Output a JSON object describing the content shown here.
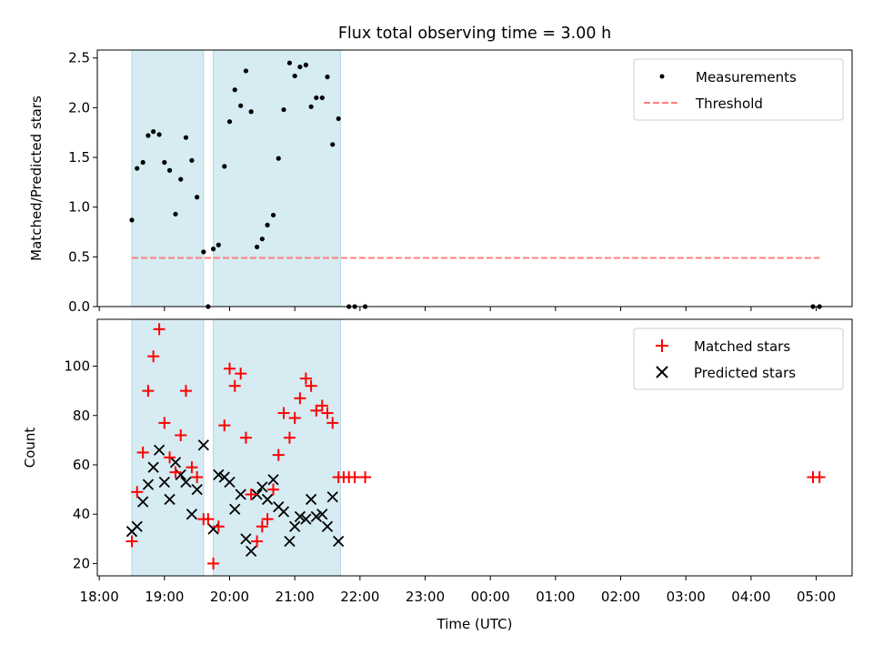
{
  "figure_title": "Flux total observing time = 3.00 h",
  "chart_data": [
    {
      "type": "scatter",
      "id": "ratio",
      "title": "Flux total observing time = 3.00 h",
      "xlabel": "",
      "ylabel": "Matched/Predicted stars",
      "xlim_hours": [
        17.97,
        29.55
      ],
      "ylim": [
        0,
        2.58
      ],
      "yticks": [
        {
          "v": 0,
          "label": "0.0"
        },
        {
          "v": 0.5,
          "label": "0.5"
        },
        {
          "v": 1.0,
          "label": "1.0"
        },
        {
          "v": 1.5,
          "label": "1.5"
        },
        {
          "v": 2.0,
          "label": "2.0"
        },
        {
          "v": 2.5,
          "label": "2.5"
        }
      ],
      "grid": false,
      "legend_position": "top-right",
      "legend": [
        {
          "label": "Measurements",
          "marker": "dot",
          "color": "#000000"
        },
        {
          "label": "Threshold",
          "marker": "dashed-line",
          "color": "#ff7f7f"
        }
      ],
      "threshold": {
        "name": "Threshold",
        "value": 0.49,
        "x_range_hours": [
          18.5,
          29.05
        ],
        "color": "#ff7f7f"
      },
      "shaded_periods_hours": [
        [
          18.5,
          19.6
        ],
        [
          19.75,
          21.7
        ]
      ],
      "shade_color": "#add8e6",
      "series": [
        {
          "name": "Measurements",
          "color": "#000000",
          "x_hours": [
            18.5,
            18.58,
            18.67,
            18.75,
            18.83,
            18.92,
            19.0,
            19.08,
            19.17,
            19.25,
            19.33,
            19.42,
            19.5,
            19.6,
            19.67,
            19.75,
            19.83,
            19.92,
            20.0,
            20.08,
            20.17,
            20.25,
            20.33,
            20.42,
            20.5,
            20.58,
            20.67,
            20.75,
            20.83,
            20.92,
            21.0,
            21.08,
            21.17,
            21.25,
            21.33,
            21.42,
            21.5,
            21.58,
            21.67,
            21.83,
            21.92,
            22.08,
            28.95,
            29.05
          ],
          "y": [
            0.87,
            1.39,
            1.45,
            1.72,
            1.76,
            1.73,
            1.45,
            1.37,
            0.93,
            1.28,
            1.7,
            1.47,
            1.1,
            0.55,
            0.0,
            0.58,
            0.62,
            1.41,
            1.86,
            2.18,
            2.02,
            2.37,
            1.96,
            0.6,
            0.68,
            0.82,
            0.92,
            1.49,
            1.98,
            2.45,
            2.32,
            2.41,
            2.43,
            2.01,
            2.1,
            2.1,
            2.31,
            1.63,
            1.89,
            0.0,
            0.0,
            0.0,
            0.0,
            0.0
          ]
        }
      ]
    },
    {
      "type": "scatter",
      "id": "count",
      "title": "",
      "xlabel": "Time (UTC)",
      "ylabel": "Count",
      "xlim_hours": [
        17.97,
        29.55
      ],
      "ylim": [
        15,
        119
      ],
      "yticks": [
        {
          "v": 20,
          "label": "20"
        },
        {
          "v": 40,
          "label": "40"
        },
        {
          "v": 60,
          "label": "60"
        },
        {
          "v": 80,
          "label": "80"
        },
        {
          "v": 100,
          "label": "100"
        }
      ],
      "xticks": [
        {
          "v": 18,
          "label": "18:00"
        },
        {
          "v": 19,
          "label": "19:00"
        },
        {
          "v": 20,
          "label": "20:00"
        },
        {
          "v": 21,
          "label": "21:00"
        },
        {
          "v": 22,
          "label": "22:00"
        },
        {
          "v": 23,
          "label": "23:00"
        },
        {
          "v": 24,
          "label": "00:00"
        },
        {
          "v": 25,
          "label": "01:00"
        },
        {
          "v": 26,
          "label": "02:00"
        },
        {
          "v": 27,
          "label": "03:00"
        },
        {
          "v": 28,
          "label": "04:00"
        },
        {
          "v": 29,
          "label": "05:00"
        }
      ],
      "grid": false,
      "legend_position": "top-right",
      "legend": [
        {
          "label": "Matched stars",
          "marker": "plus",
          "color": "#ff0000"
        },
        {
          "label": "Predicted stars",
          "marker": "x",
          "color": "#000000"
        }
      ],
      "shaded_periods_hours": [
        [
          18.5,
          19.6
        ],
        [
          19.75,
          21.7
        ]
      ],
      "shade_color": "#add8e6",
      "series": [
        {
          "name": "Matched stars",
          "marker": "plus",
          "color": "#ff0000",
          "x_hours": [
            18.5,
            18.58,
            18.67,
            18.75,
            18.83,
            18.92,
            19.0,
            19.08,
            19.17,
            19.25,
            19.33,
            19.42,
            19.5,
            19.6,
            19.67,
            19.75,
            19.83,
            19.92,
            20.0,
            20.08,
            20.17,
            20.25,
            20.33,
            20.42,
            20.5,
            20.58,
            20.67,
            20.75,
            20.83,
            20.92,
            21.0,
            21.08,
            21.17,
            21.25,
            21.33,
            21.42,
            21.5,
            21.58,
            21.67,
            21.75,
            21.83,
            21.92,
            22.08,
            28.95,
            29.05
          ],
          "y": [
            29,
            49,
            65,
            90,
            104,
            115,
            77,
            63,
            57,
            72,
            90,
            59,
            55,
            38,
            38,
            20,
            35,
            76,
            99,
            92,
            97,
            71,
            48,
            29,
            35,
            38,
            50,
            64,
            81,
            71,
            79,
            87,
            95,
            92,
            82,
            84,
            81,
            77,
            55,
            55,
            55,
            55,
            55,
            55,
            55
          ]
        },
        {
          "name": "Predicted stars",
          "marker": "x",
          "color": "#000000",
          "x_hours": [
            18.5,
            18.58,
            18.67,
            18.75,
            18.83,
            18.92,
            19.0,
            19.08,
            19.17,
            19.25,
            19.33,
            19.42,
            19.5,
            19.6,
            19.75,
            19.83,
            19.92,
            20.0,
            20.08,
            20.17,
            20.25,
            20.33,
            20.42,
            20.5,
            20.58,
            20.67,
            20.75,
            20.83,
            20.92,
            21.0,
            21.08,
            21.17,
            21.25,
            21.33,
            21.42,
            21.5,
            21.58,
            21.67
          ],
          "y": [
            33,
            35,
            45,
            52,
            59,
            66,
            53,
            46,
            61,
            56,
            53,
            40,
            50,
            68,
            34,
            56,
            55,
            53,
            42,
            48,
            30,
            25,
            48,
            51,
            46,
            54,
            43,
            41,
            29,
            35,
            39,
            38,
            46,
            39,
            40,
            35,
            47,
            29
          ]
        }
      ]
    }
  ]
}
